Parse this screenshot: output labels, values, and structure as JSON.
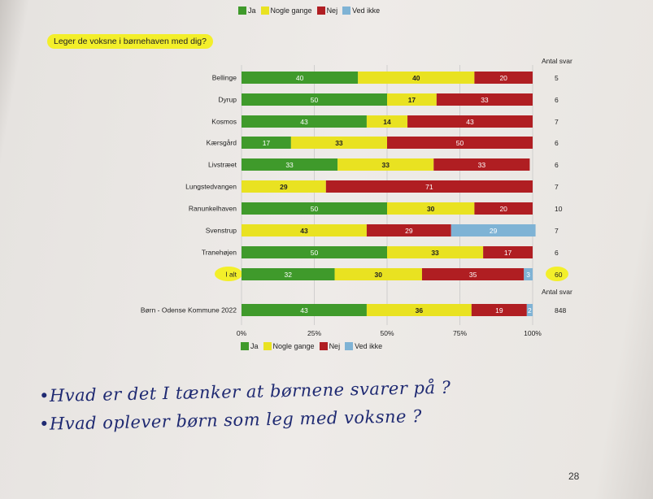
{
  "legend": [
    {
      "label": "Ja",
      "color": "#3f9a2b"
    },
    {
      "label": "Nogle gange",
      "color": "#e9e221"
    },
    {
      "label": "Nej",
      "color": "#b01e22"
    },
    {
      "label": "Ved ikke",
      "color": "#7fb3d5"
    }
  ],
  "question": "Leger de voksne i børnehaven med dig?",
  "antal_svar_label": "Antal svar",
  "handwritten": [
    "•Hvad er det I tænker at børnene svarer på ?",
    "•Hvad oplever børn som leg med voksne ?"
  ],
  "page_number": "28",
  "chart_data": {
    "type": "bar",
    "orientation": "horizontal",
    "stacked": true,
    "title": "Leger de voksne i børnehaven med dig?",
    "categories": [
      "Bellinge",
      "Dyrup",
      "Kosmos",
      "Kærsgård",
      "Livstræet",
      "Lungstedvangen",
      "Ranunkelhaven",
      "Svenstrup",
      "Tranehøjen",
      "I alt",
      "Børn - Odense Kommune 2022"
    ],
    "series": [
      {
        "name": "Ja",
        "color": "#3f9a2b",
        "values": [
          40,
          50,
          43,
          17,
          33,
          0,
          50,
          0,
          50,
          32,
          43
        ]
      },
      {
        "name": "Nogle gange",
        "color": "#e9e221",
        "values": [
          40,
          17,
          14,
          33,
          33,
          29,
          30,
          43,
          33,
          30,
          36
        ]
      },
      {
        "name": "Nej",
        "color": "#b01e22",
        "values": [
          20,
          33,
          43,
          50,
          33,
          71,
          20,
          29,
          17,
          35,
          19
        ]
      },
      {
        "name": "Ved ikke",
        "color": "#7fb3d5",
        "values": [
          0,
          0,
          0,
          0,
          0,
          0,
          0,
          29,
          0,
          3,
          2
        ]
      }
    ],
    "antal_svar": [
      "5",
      "6",
      "7",
      "6",
      "6",
      "7",
      "10",
      "7",
      "6",
      "60",
      "848"
    ],
    "x_ticks": [
      "0%",
      "25%",
      "50%",
      "75%",
      "100%"
    ],
    "xlim": [
      0,
      100
    ],
    "grid": true,
    "legend_position": "top and bottom"
  }
}
